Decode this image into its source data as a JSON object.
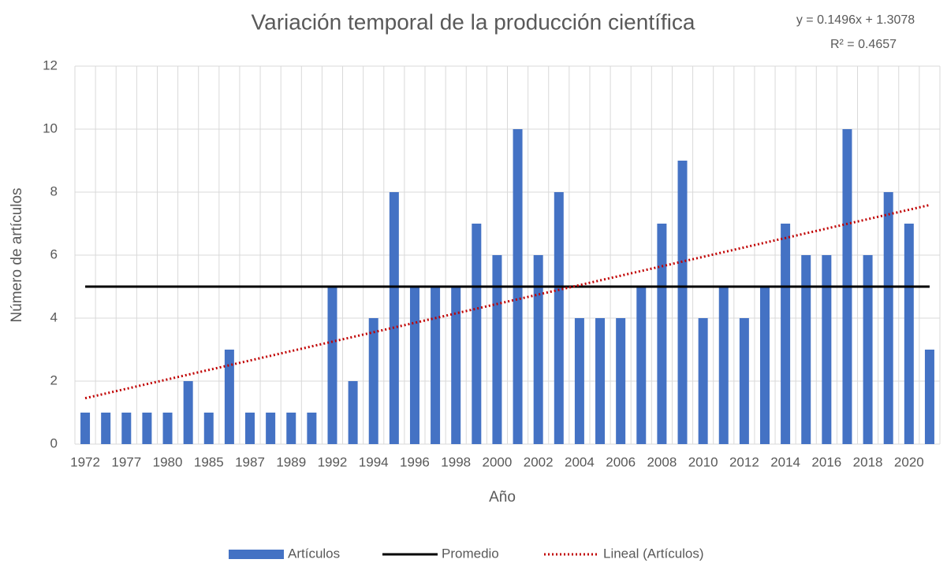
{
  "chart_data": {
    "type": "bar",
    "title": "Variación temporal de la producción científica",
    "xlabel": "Año",
    "ylabel": "Número de artículos",
    "categories": [
      "1972",
      null,
      "1977",
      null,
      "1980",
      null,
      "1985",
      null,
      "1987",
      null,
      "1989",
      null,
      "1992",
      null,
      "1994",
      null,
      "1996",
      null,
      "1998",
      null,
      "2000",
      null,
      "2002",
      null,
      "2004",
      null,
      "2006",
      null,
      "2008",
      null,
      "2010",
      null,
      "2012",
      null,
      "2014",
      null,
      "2016",
      null,
      "2018",
      null,
      "2020",
      null
    ],
    "series": [
      {
        "name": "Artículos",
        "type": "bar",
        "color": "#4472c4",
        "values": [
          1,
          1,
          1,
          1,
          1,
          2,
          1,
          3,
          1,
          1,
          1,
          1,
          5,
          2,
          4,
          8,
          5,
          5,
          5,
          7,
          6,
          10,
          6,
          8,
          4,
          4,
          4,
          5,
          7,
          9,
          4,
          5,
          4,
          5,
          7,
          6,
          6,
          10,
          6,
          8,
          7,
          3
        ]
      },
      {
        "name": "Promedio",
        "type": "line",
        "color": "#000000",
        "values": [
          5,
          5,
          5,
          5,
          5,
          5,
          5,
          5,
          5,
          5,
          5,
          5,
          5,
          5,
          5,
          5,
          5,
          5,
          5,
          5,
          5,
          5,
          5,
          5,
          5,
          5,
          5,
          5,
          5,
          5,
          5,
          5,
          5,
          5,
          5,
          5,
          5,
          5,
          5,
          5,
          5,
          5
        ]
      }
    ],
    "trendline": {
      "name": "Lineal (Artículos)",
      "color": "#c00000",
      "slope": 0.1496,
      "intercept": 1.3078,
      "equation": "y = 0.1496x + 1.3078",
      "r2": "R² = 0.4657"
    },
    "ylim": [
      0,
      12
    ],
    "yticks": [
      0,
      2,
      4,
      6,
      8,
      10,
      12
    ],
    "grid": true,
    "xgrid": true,
    "legend": "bottom"
  }
}
